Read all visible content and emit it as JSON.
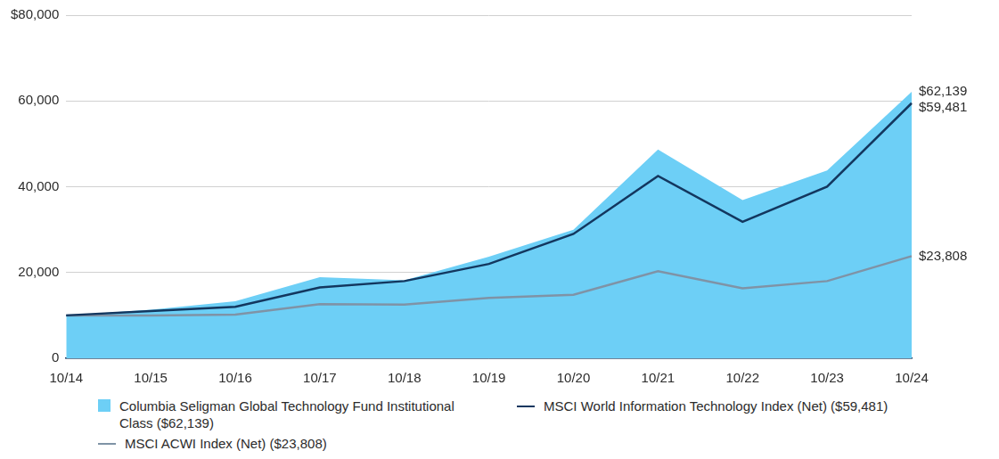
{
  "chart_data": {
    "type": "line",
    "categories": [
      "10/14",
      "10/15",
      "10/16",
      "10/17",
      "10/18",
      "10/19",
      "10/20",
      "10/21",
      "10/22",
      "10/23",
      "10/24"
    ],
    "series": [
      {
        "name": "Columbia Seligman Global Technology Fund Institutional Class ($62,139)",
        "type": "area",
        "color": "#6dcff6",
        "values": [
          10000,
          11300,
          13300,
          18900,
          18200,
          23700,
          30000,
          48700,
          36900,
          43800,
          62139
        ],
        "end_label": "$62,139"
      },
      {
        "name": "MSCI World Information Technology Index (Net) ($59,481)",
        "type": "line",
        "color": "#13375f",
        "values": [
          10000,
          11000,
          12000,
          16500,
          18000,
          22000,
          29000,
          42500,
          31800,
          40000,
          59481
        ],
        "end_label": "$59,481"
      },
      {
        "name": "MSCI ACWI Index (Net) ($23,808)",
        "type": "line",
        "color": "#7f93a6",
        "values": [
          10000,
          10000,
          10200,
          12600,
          12500,
          14100,
          14800,
          20300,
          16300,
          18000,
          23808
        ],
        "end_label": "$23,808"
      }
    ],
    "ylim": [
      0,
      80000
    ],
    "yticks": [
      0,
      {
        "value": 20000,
        "label": "20,000"
      },
      {
        "value": 40000,
        "label": "40,000"
      },
      {
        "value": 60000,
        "label": "60,000"
      },
      {
        "value": 80000,
        "label": "$80,000"
      }
    ],
    "grid": true,
    "legend": "bottom"
  }
}
